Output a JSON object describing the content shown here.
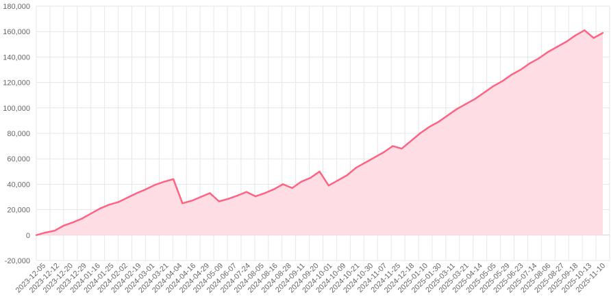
{
  "chart_data": {
    "type": "area",
    "title": "",
    "xlabel": "",
    "ylabel": "",
    "ylim": [
      -20000,
      180000
    ],
    "y_ticks": [
      "-20,000",
      "0",
      "20,000",
      "40,000",
      "60,000",
      "80,000",
      "100,000",
      "120,000",
      "140,000",
      "160,000",
      "180,000"
    ],
    "y_tick_values": [
      -20000,
      0,
      20000,
      40000,
      60000,
      80000,
      100000,
      120000,
      140000,
      160000,
      180000
    ],
    "x_ticks": [
      "2023-12-05",
      "2023-12-12",
      "2023-12-20",
      "2023-12-29",
      "2024-01-16",
      "2024-01-25",
      "2024-02-02",
      "2024-02-19",
      "2024-03-01",
      "2024-03-21",
      "2024-04-04",
      "2024-04-16",
      "2024-04-29",
      "2024-05-09",
      "2024-06-07",
      "2024-07-24",
      "2024-08-05",
      "2024-08-16",
      "2024-08-28",
      "2024-09-11",
      "2024-09-20",
      "2024-10-01",
      "2024-10-09",
      "2024-10-21",
      "2024-10-30",
      "2024-11-07",
      "2024-11-25",
      "2024-12-18",
      "2025-01-10",
      "2025-01-30",
      "2025-03-11",
      "2025-03-21",
      "2025-04-14",
      "2025-05-05",
      "2025-05-29",
      "2025-06-23",
      "2025-07-14",
      "2025-08-06",
      "2025-08-27",
      "2025-09-18",
      "2025-10-13",
      "2025-11-10"
    ],
    "grid": true,
    "legend": "none",
    "colors": {
      "line": "#ff6384",
      "fill": "#ffdde4"
    },
    "series": [
      {
        "values": [
          0,
          2000,
          3500,
          7500,
          10000,
          13000,
          17000,
          21000,
          24000,
          26000,
          29500,
          33000,
          36000,
          39500,
          42000,
          44000,
          25000,
          27000,
          30000,
          33000,
          26500,
          28500,
          31000,
          34000,
          30500,
          33000,
          36000,
          40000,
          37000,
          42000,
          45000,
          50000,
          39000,
          43000,
          47000,
          53000,
          57000,
          61000,
          65000,
          70000,
          68000,
          74000,
          80000,
          85000,
          89000,
          94000,
          99000,
          103000,
          107000,
          112000,
          117000,
          121000,
          126000,
          130000,
          135000,
          139000,
          144000,
          148000,
          152000,
          157000,
          161000,
          155000,
          159000
        ]
      }
    ]
  }
}
